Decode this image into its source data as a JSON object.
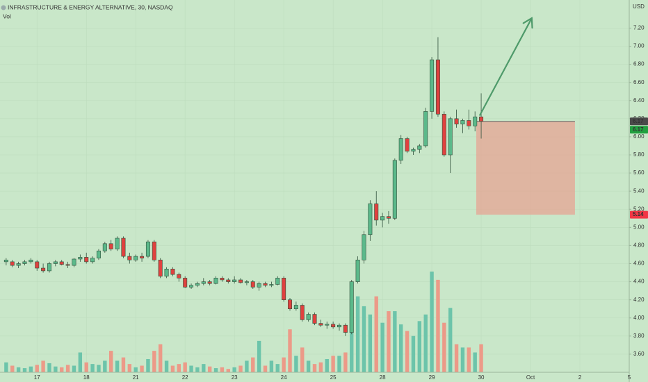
{
  "chart_data": {
    "type": "candlestick",
    "title": "INFRASTRUCTURE & ENERGY ALTERNATIVE, 30, NASDAQ",
    "subtitle": "Vol",
    "currency": "USD",
    "open": [
      4.62,
      4.62,
      4.58,
      4.6,
      4.62,
      4.62,
      4.55,
      4.52,
      4.6,
      4.62,
      4.59,
      4.58,
      4.65,
      4.67,
      4.62,
      4.66,
      4.74,
      4.82,
      4.76,
      4.88,
      4.68,
      4.64,
      4.68,
      4.68,
      4.84,
      4.64,
      4.46,
      4.54,
      4.48,
      4.44,
      4.34,
      4.36,
      4.38,
      4.4,
      4.38,
      4.44,
      4.42,
      4.4,
      4.42,
      4.39,
      4.4,
      4.34,
      4.38,
      4.36,
      4.37,
      4.44,
      4.2,
      4.1,
      4.14,
      3.98,
      4.04,
      3.94,
      3.92,
      3.93,
      3.9,
      3.92,
      3.84,
      4.4,
      4.64,
      4.92,
      5.26,
      5.08,
      5.12,
      5.1,
      5.74,
      5.98,
      5.84,
      5.86,
      5.9,
      6.28,
      6.85,
      6.25,
      5.8,
      6.2,
      6.14,
      6.18,
      6.12,
      6.22
    ],
    "high": [
      4.66,
      4.64,
      4.62,
      4.64,
      4.66,
      4.64,
      4.6,
      4.62,
      4.64,
      4.64,
      4.62,
      4.66,
      4.7,
      4.72,
      4.68,
      4.76,
      4.84,
      4.86,
      4.9,
      4.9,
      4.72,
      4.7,
      4.72,
      4.86,
      4.86,
      4.66,
      4.56,
      4.56,
      4.5,
      4.46,
      4.38,
      4.4,
      4.44,
      4.42,
      4.46,
      4.46,
      4.44,
      4.46,
      4.44,
      4.42,
      4.42,
      4.4,
      4.4,
      4.4,
      4.46,
      4.46,
      4.22,
      4.18,
      4.16,
      4.06,
      4.06,
      3.98,
      3.96,
      3.96,
      3.94,
      3.94,
      4.42,
      4.68,
      4.96,
      5.3,
      5.4,
      5.16,
      5.18,
      5.76,
      6.02,
      6.0,
      5.88,
      5.92,
      6.32,
      6.88,
      7.1,
      6.28,
      6.22,
      6.3,
      6.2,
      6.3,
      6.28,
      6.48
    ],
    "low": [
      4.58,
      4.56,
      4.55,
      4.58,
      4.6,
      4.52,
      4.5,
      4.5,
      4.57,
      4.58,
      4.55,
      4.56,
      4.62,
      4.6,
      4.6,
      4.64,
      4.72,
      4.74,
      4.74,
      4.66,
      4.6,
      4.62,
      4.62,
      4.66,
      4.62,
      4.44,
      4.44,
      4.46,
      4.4,
      4.33,
      4.32,
      4.34,
      4.36,
      4.36,
      4.37,
      4.4,
      4.38,
      4.38,
      4.38,
      4.36,
      4.32,
      4.3,
      4.34,
      4.34,
      4.36,
      4.18,
      4.08,
      4.08,
      3.96,
      3.96,
      3.92,
      3.9,
      3.88,
      3.88,
      3.86,
      3.8,
      3.82,
      4.38,
      4.6,
      4.85,
      5.02,
      5.0,
      5.04,
      5.08,
      5.7,
      5.82,
      5.8,
      5.82,
      5.88,
      6.2,
      6.22,
      5.78,
      5.6,
      6.1,
      6.04,
      6.08,
      6.06,
      5.98
    ],
    "close": [
      4.64,
      4.58,
      4.6,
      4.62,
      4.64,
      4.55,
      4.52,
      4.6,
      4.62,
      4.59,
      4.58,
      4.65,
      4.67,
      4.62,
      4.66,
      4.74,
      4.82,
      4.76,
      4.88,
      4.68,
      4.64,
      4.68,
      4.66,
      4.84,
      4.64,
      4.46,
      4.54,
      4.48,
      4.44,
      4.34,
      4.36,
      4.38,
      4.4,
      4.38,
      4.44,
      4.42,
      4.4,
      4.42,
      4.39,
      4.4,
      4.34,
      4.38,
      4.36,
      4.37,
      4.44,
      4.2,
      4.1,
      4.14,
      3.98,
      4.04,
      3.94,
      3.92,
      3.93,
      3.9,
      3.92,
      3.84,
      4.4,
      4.64,
      4.92,
      5.26,
      5.08,
      5.12,
      5.1,
      5.74,
      5.98,
      5.84,
      5.86,
      5.9,
      6.28,
      6.85,
      6.25,
      5.8,
      6.2,
      6.14,
      6.18,
      6.12,
      6.22,
      6.17
    ],
    "volume": [
      12,
      8,
      6,
      5,
      7,
      9,
      14,
      11,
      7,
      6,
      9,
      8,
      24,
      12,
      10,
      9,
      14,
      26,
      14,
      18,
      10,
      6,
      8,
      16,
      26,
      34,
      14,
      8,
      10,
      12,
      8,
      6,
      10,
      7,
      5,
      6,
      4,
      6,
      8,
      14,
      18,
      38,
      8,
      14,
      10,
      18,
      52,
      20,
      30,
      14,
      10,
      12,
      16,
      20,
      20,
      24,
      72,
      92,
      80,
      70,
      92,
      60,
      74,
      74,
      58,
      50,
      44,
      62,
      70,
      122,
      112,
      60,
      78,
      34,
      30,
      30,
      24,
      34
    ],
    "up_color": "#5bb98a",
    "down_color": "#e0413f",
    "volume_up_color": "#6cc4aa",
    "volume_down_color": "#ec9a88",
    "xlim": [
      -1,
      101
    ],
    "xticks": [
      {
        "value": 5,
        "label": "17"
      },
      {
        "value": 13,
        "label": "18"
      },
      {
        "value": 21,
        "label": "21"
      },
      {
        "value": 29,
        "label": "22"
      },
      {
        "value": 37,
        "label": "23"
      },
      {
        "value": 45,
        "label": "24"
      },
      {
        "value": 53,
        "label": "25"
      },
      {
        "value": 61,
        "label": "28"
      },
      {
        "value": 69,
        "label": "29"
      },
      {
        "value": 77,
        "label": "30"
      },
      {
        "value": 85,
        "label": "Oct"
      },
      {
        "value": 93,
        "label": "2"
      },
      {
        "value": 101,
        "label": "5"
      }
    ],
    "ylim": [
      3.4,
      7.51
    ],
    "yticks": [
      {
        "value": 3.6,
        "label": "3.60"
      },
      {
        "value": 3.8,
        "label": "3.80"
      },
      {
        "value": 4.0,
        "label": "4.00"
      },
      {
        "value": 4.2,
        "label": "4.20"
      },
      {
        "value": 4.4,
        "label": "4.40"
      },
      {
        "value": 4.6,
        "label": "4.60"
      },
      {
        "value": 4.8,
        "label": "4.80"
      },
      {
        "value": 5.0,
        "label": "5.00"
      },
      {
        "value": 5.2,
        "label": "5.20"
      },
      {
        "value": 5.4,
        "label": "5.40"
      },
      {
        "value": 5.6,
        "label": "5.60"
      },
      {
        "value": 5.8,
        "label": "5.80"
      },
      {
        "value": 6.0,
        "label": "6.00"
      },
      {
        "value": 6.2,
        "label": "6.20"
      },
      {
        "value": 6.4,
        "label": "6.40"
      },
      {
        "value": 6.6,
        "label": "6.60"
      },
      {
        "value": 6.8,
        "label": "6.80"
      },
      {
        "value": 7.0,
        "label": "7.00"
      },
      {
        "value": 7.2,
        "label": "7.20"
      }
    ],
    "grid": true,
    "price_labels": [
      {
        "value": 6.17,
        "color": "#4a4a4a"
      },
      {
        "value": 6.17,
        "color": "#22a040"
      },
      {
        "value": 5.14,
        "color": "#f23645"
      }
    ],
    "position": {
      "x": [
        76.2,
        92.2
      ],
      "entry": 6.17,
      "stop": 5.14,
      "color": "#e8a090"
    },
    "arrow": {
      "x": [
        76.8,
        85.2
      ],
      "y": [
        6.24,
        7.31
      ],
      "color": "#4e9a6a"
    }
  }
}
